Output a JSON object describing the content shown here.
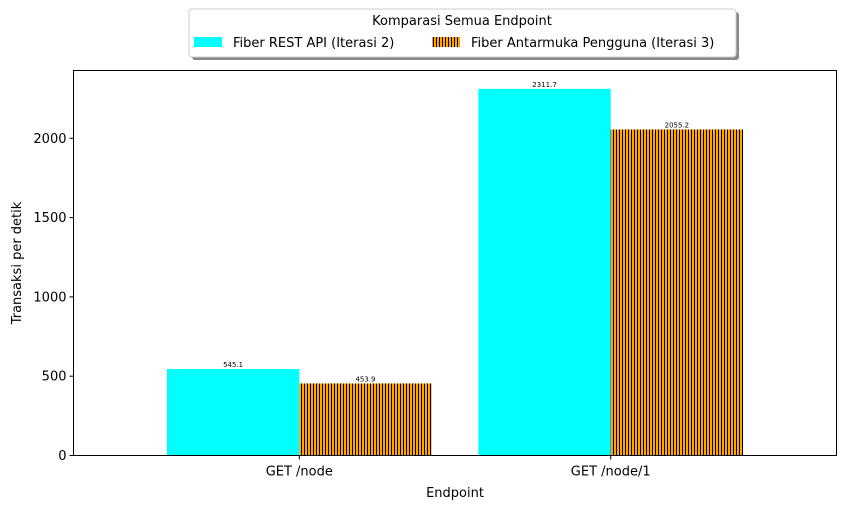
{
  "chart_data": {
    "type": "bar",
    "categories": [
      "GET /node",
      "GET /node/1"
    ],
    "series": [
      {
        "name": "Fiber REST API (Iterasi 2)",
        "values": [
          545.1,
          2311.7
        ],
        "color": "#00ffff",
        "pattern": "solid"
      },
      {
        "name": "Fiber Antarmuka Pengguna (Iterasi 3)",
        "values": [
          453.9,
          2055.2
        ],
        "color": "#ffa500",
        "pattern": "vertical-hatch"
      }
    ],
    "data_labels": [
      [
        "545.1",
        "2311.7"
      ],
      [
        "453.9",
        "2055.2"
      ]
    ],
    "legend_title": "Komparasi Semua Endpoint",
    "legend_position": "top-center",
    "xlabel": "Endpoint",
    "ylabel": "Transaksi per detik",
    "ylim": [
      0,
      2427.3
    ],
    "yticks": [
      0,
      500,
      1000,
      1500,
      2000
    ],
    "grid": false
  }
}
